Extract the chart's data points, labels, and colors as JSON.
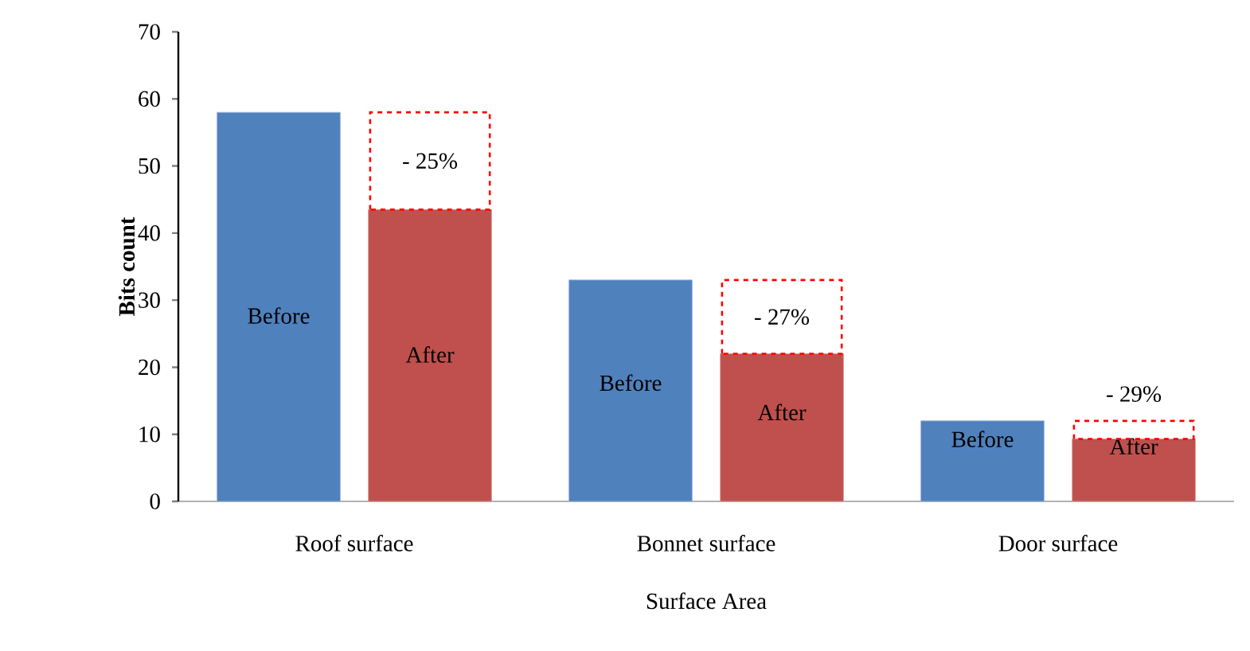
{
  "chart_data": {
    "type": "bar",
    "xlabel": "Surface Area",
    "ylabel": "Bits count",
    "categories": [
      "Roof surface",
      "Bonnet surface",
      "Door surface"
    ],
    "series": [
      {
        "name": "Before",
        "color": "#4f81bd",
        "values": [
          58,
          33,
          12
        ]
      },
      {
        "name": "After",
        "color": "#c0504d",
        "values": [
          43.5,
          22,
          9.3
        ]
      }
    ],
    "ylim": [
      0,
      70
    ],
    "yticks": [
      0,
      10,
      20,
      30,
      40,
      50,
      60,
      70
    ],
    "annotations": [
      "- 25%",
      "- 27%",
      "- 29%"
    ]
  }
}
